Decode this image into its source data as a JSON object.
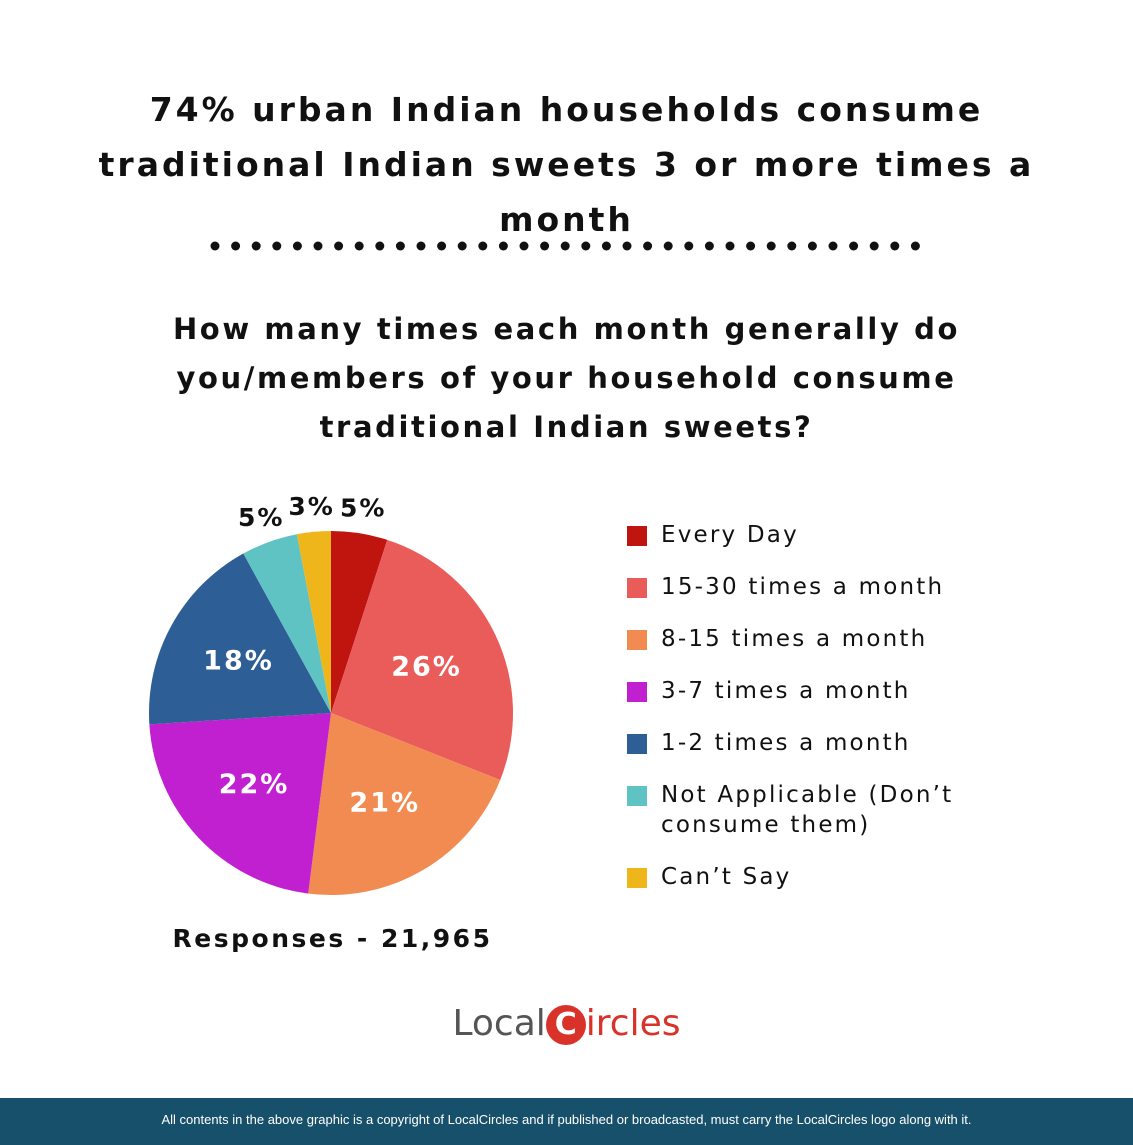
{
  "chart_data": {
    "type": "pie",
    "title": "74% urban Indian households consume traditional Indian sweets 3 or more times a month",
    "subtitle": "How many times each month generally do you/members of your household consume traditional Indian sweets?",
    "categories": [
      "Every Day",
      "15-30 times a month",
      "8-15 times a month",
      "3-7 times a month",
      "1-2 times a month",
      "Not Applicable (Don’t consume them)",
      "Can’t Say"
    ],
    "values": [
      5,
      26,
      21,
      22,
      18,
      5,
      3
    ],
    "value_labels": [
      "5%",
      "26%",
      "21%",
      "22%",
      "18%",
      "5%",
      "3%"
    ],
    "colors": [
      "#c0150f",
      "#e95c5a",
      "#f28b52",
      "#c020d0",
      "#2d5e96",
      "#5fc3c4",
      "#efb61c"
    ],
    "note": "Responses - 21,965"
  },
  "logo": {
    "left": "Local",
    "icon": "C",
    "right": "ircles"
  },
  "footer": "All contents in the above graphic is a copyright of LocalCircles and if published or broadcasted, must carry the LocalCircles logo along with it."
}
